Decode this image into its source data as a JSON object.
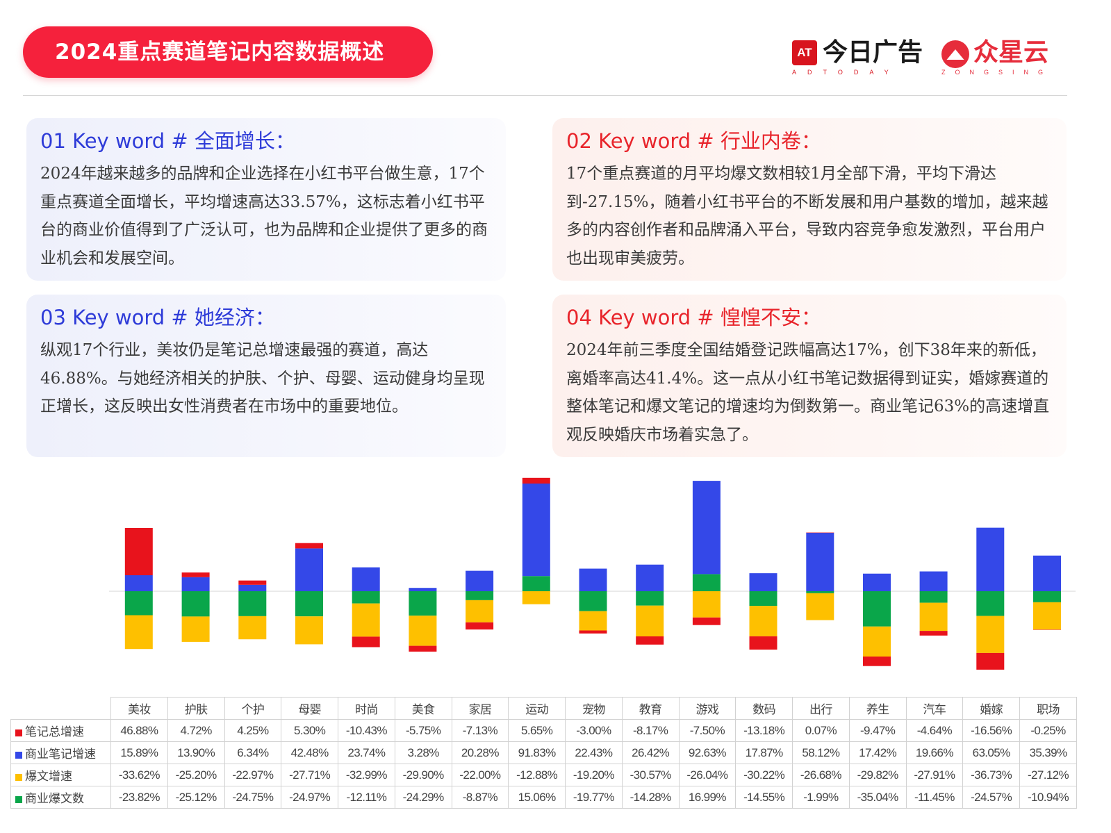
{
  "header": {
    "title": "2024重点赛道笔记内容数据概述",
    "brand1": {
      "logo": "AT",
      "name": "今日广告",
      "sub": "ADTODAY"
    },
    "brand2": {
      "icon": "mountain-logo-icon",
      "name": "众星云",
      "sub": "ZONGSING"
    }
  },
  "cards": [
    {
      "title": "01 Key word # 全面增长：",
      "body": "2024年越来越多的品牌和企业选择在小红书平台做生意，17个重点赛道全面增长，平均增速高达33.57%，这标志着小红书平台的商业价值得到了广泛认可，也为品牌和企业提供了更多的商业机会和发展空间。"
    },
    {
      "title": "02 Key word # 行业内卷：",
      "body": "17个重点赛道的月平均爆文数相较1月全部下滑，平均下滑达到-27.15%，随着小红书平台的不断发展和用户基数的增加，越来越多的内容创作者和品牌涌入平台，导致内容竞争愈发激烈，平台用户也出现审美疲劳。"
    },
    {
      "title": "03 Key word # 她经济：",
      "body": "纵观17个行业，美妆仍是笔记总增速最强的赛道，高达46.88%。与她经济相关的护肤、个护、母婴、运动健身均呈现正增长，这反映出女性消费者在市场中的重要地位。"
    },
    {
      "title": "04 Key word # 惶惶不安：",
      "body": "2024年前三季度全国结婚登记跌幅高达17%，创下38年来的新低，离婚率高达41.4%。这一点从小红书笔记数据得到证实，婚嫁赛道的整体笔记和爆文笔记的增速均为倒数第一。商业笔记63%的高速增直观反映婚庆市场着实急了。"
    }
  ],
  "chart_data": {
    "type": "bar",
    "stacked": true,
    "categories": [
      "美妆",
      "护肤",
      "个护",
      "母婴",
      "时尚",
      "美食",
      "家居",
      "运动",
      "宠物",
      "教育",
      "游戏",
      "数码",
      "出行",
      "养生",
      "汽车",
      "婚嫁",
      "职场"
    ],
    "series": [
      {
        "name": "笔记总增速",
        "color": "#e8131c",
        "values": [
          46.88,
          4.72,
          4.25,
          5.3,
          -10.43,
          -5.75,
          -7.13,
          5.65,
          -3.0,
          -8.17,
          -7.5,
          -13.18,
          0.07,
          -9.47,
          -4.64,
          -16.56,
          -0.25
        ]
      },
      {
        "name": "商业笔记增速",
        "color": "#3448e8",
        "values": [
          15.89,
          13.9,
          6.34,
          42.48,
          23.74,
          3.28,
          20.28,
          91.83,
          22.43,
          26.42,
          92.63,
          17.87,
          58.12,
          17.42,
          19.66,
          63.05,
          35.39
        ]
      },
      {
        "name": "爆文增速",
        "color": "#fec000",
        "values": [
          -33.62,
          -25.2,
          -22.97,
          -27.71,
          -32.99,
          -29.9,
          -22.0,
          -12.88,
          -19.2,
          -30.57,
          -26.04,
          -30.22,
          -26.68,
          -29.82,
          -27.91,
          -36.73,
          -27.12
        ]
      },
      {
        "name": "商业爆文数",
        "color": "#0aa64a",
        "values": [
          -23.82,
          -25.12,
          -24.75,
          -24.97,
          -12.11,
          -24.29,
          -8.87,
          15.06,
          -19.77,
          -14.28,
          16.99,
          -14.55,
          -1.99,
          -35.04,
          -11.45,
          -24.57,
          -10.94
        ]
      }
    ],
    "table_cells": [
      [
        "46.88%",
        "4.72%",
        "4.25%",
        "5.30%",
        "-10.43%",
        "-5.75%",
        "-7.13%",
        "5.65%",
        "-3.00%",
        "-8.17%",
        "-7.50%",
        "-13.18%",
        "0.07%",
        "-9.47%",
        "-4.64%",
        "-16.56%",
        "-0.25%"
      ],
      [
        "15.89%",
        "13.90%",
        "6.34%",
        "42.48%",
        "23.74%",
        "3.28%",
        "20.28%",
        "91.83%",
        "22.43%",
        "26.42%",
        "92.63%",
        "17.87%",
        "58.12%",
        "17.42%",
        "19.66%",
        "63.05%",
        "35.39%"
      ],
      [
        "-33.62%",
        "-25.20%",
        "-22.97%",
        "-27.71%",
        "-32.99%",
        "-29.90%",
        "-22.00%",
        "-12.88%",
        "-19.20%",
        "-30.57%",
        "-26.04%",
        "-30.22%",
        "-26.68%",
        "-29.82%",
        "-27.91%",
        "-36.73%",
        "-27.12%"
      ],
      [
        "-23.82%",
        "-25.12%",
        "-24.75%",
        "-24.97%",
        "-12.11%",
        "-24.29%",
        "-8.87%",
        "15.06%",
        "-19.77%",
        "-14.28%",
        "16.99%",
        "-14.55%",
        "-1.99%",
        "-35.04%",
        "-11.45%",
        "-24.57%",
        "-10.94%"
      ]
    ]
  }
}
